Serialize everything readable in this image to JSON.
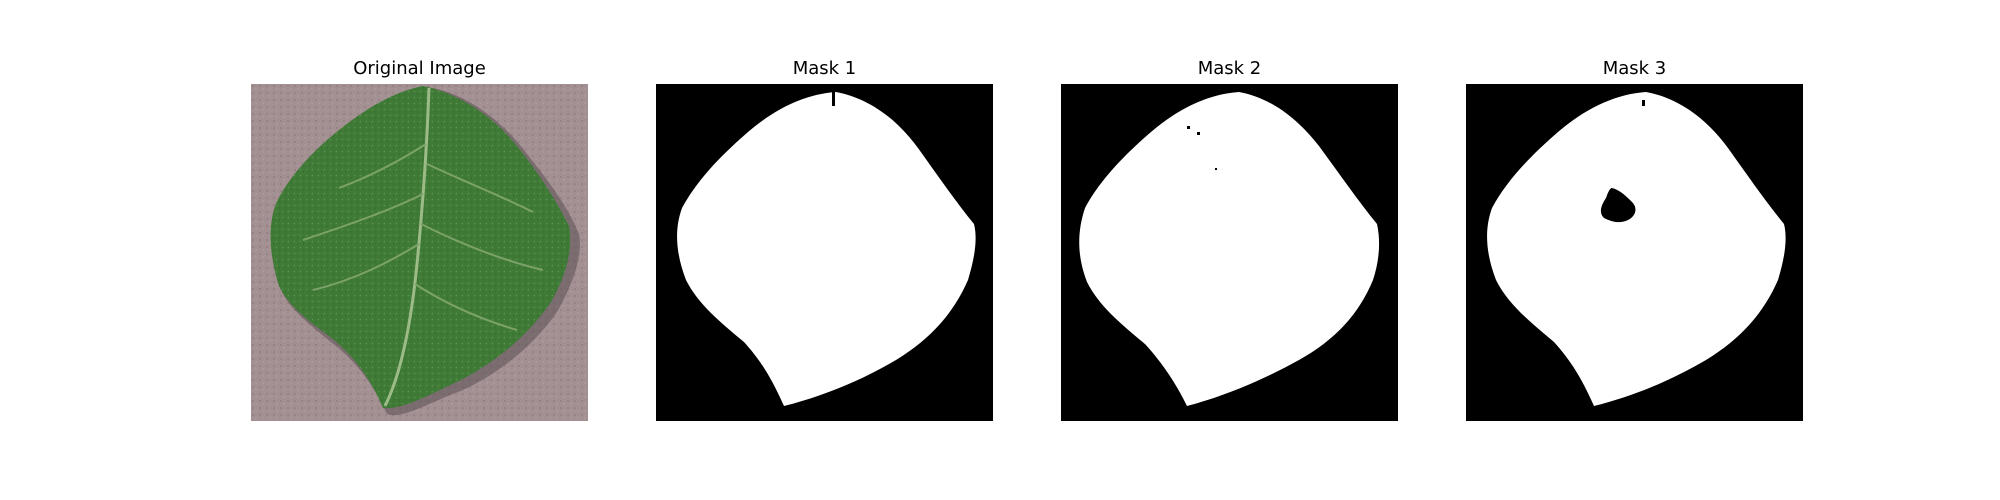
{
  "figure": {
    "background_color": "#ffffff",
    "panels": [
      {
        "title": "Original Image",
        "kind": "photo",
        "subject": "leaf-photo",
        "colors": {
          "background": "#a39092",
          "leaf": "#3f7a37",
          "vein": "#9dbb87"
        }
      },
      {
        "title": "Mask 1",
        "kind": "binary-mask",
        "colors": {
          "background": "#000000",
          "foreground": "#ffffff"
        }
      },
      {
        "title": "Mask 2",
        "kind": "binary-mask",
        "colors": {
          "background": "#000000",
          "foreground": "#ffffff"
        }
      },
      {
        "title": "Mask 3",
        "kind": "binary-mask",
        "colors": {
          "background": "#000000",
          "foreground": "#ffffff"
        }
      }
    ]
  }
}
